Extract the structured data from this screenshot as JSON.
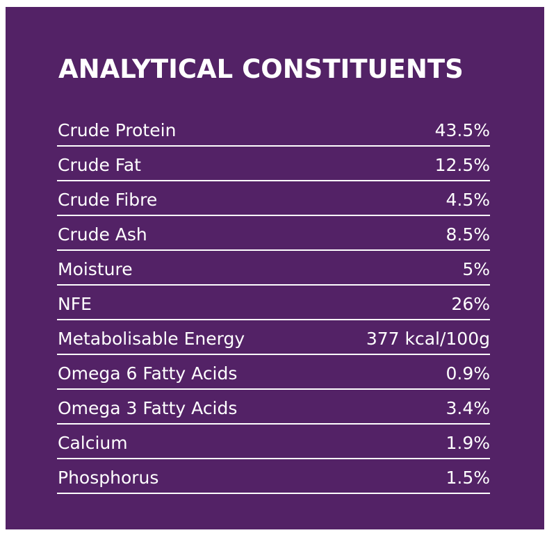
{
  "colors": {
    "panel_background": "#532266",
    "text": "#ffffff",
    "rule": "#ffffff"
  },
  "title": "ANALYTICAL CONSTITUENTS",
  "rows": [
    {
      "label": "Crude Protein",
      "value": "43.5%"
    },
    {
      "label": "Crude Fat",
      "value": "12.5%"
    },
    {
      "label": "Crude Fibre",
      "value": "4.5%"
    },
    {
      "label": "Crude Ash",
      "value": "8.5%"
    },
    {
      "label": "Moisture",
      "value": "5%"
    },
    {
      "label": "NFE",
      "value": "26%"
    },
    {
      "label": "Metabolisable Energy",
      "value": "377 kcal/100g"
    },
    {
      "label": "Omega 6 Fatty Acids",
      "value": "0.9%"
    },
    {
      "label": "Omega 3 Fatty Acids",
      "value": "3.4%"
    },
    {
      "label": "Calcium",
      "value": "1.9%"
    },
    {
      "label": "Phosphorus",
      "value": "1.5%"
    }
  ]
}
